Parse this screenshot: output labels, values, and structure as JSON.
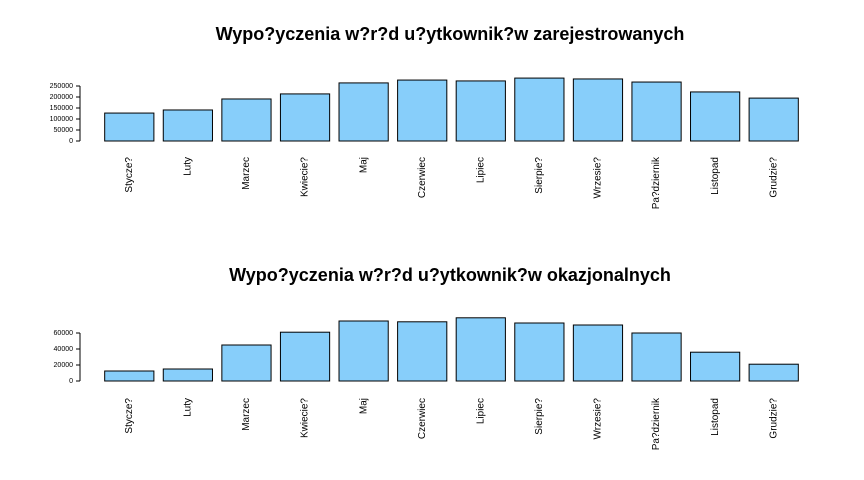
{
  "chart_data": [
    {
      "type": "bar",
      "title": "Wypo?yczenia w?r?d u?ytkownik?w zarejestrowanych",
      "categories": [
        "Stycze?",
        "Luty",
        "Marzec",
        "Kwiecie?",
        "Maj",
        "Czerwiec",
        "Lipiec",
        "Sierpie?",
        "Wrzesie?",
        "Pa?dziernik",
        "Listopad",
        "Grudzie?"
      ],
      "values": [
        127000,
        141000,
        191000,
        214000,
        264000,
        277000,
        273000,
        286000,
        282000,
        268000,
        223000,
        195000
      ],
      "color": "#87cefa",
      "ylim": [
        0,
        300000
      ],
      "yticks": [
        0,
        50000,
        100000,
        150000,
        200000,
        250000
      ]
    },
    {
      "type": "bar",
      "title": "Wypo?yczenia w?r?d u?ytkownik?w okazjonalnych",
      "categories": [
        "Stycze?",
        "Luty",
        "Marzec",
        "Kwiecie?",
        "Maj",
        "Czerwiec",
        "Lipiec",
        "Sierpie?",
        "Wrzesie?",
        "Pa?dziernik",
        "Listopad",
        "Grudzie?"
      ],
      "values": [
        12500,
        15000,
        45000,
        61000,
        75000,
        74000,
        79000,
        72500,
        70000,
        60000,
        36000,
        21000
      ],
      "color": "#87cefa",
      "ylim": [
        0,
        80000
      ],
      "yticks": [
        0,
        20000,
        40000,
        60000
      ]
    }
  ]
}
